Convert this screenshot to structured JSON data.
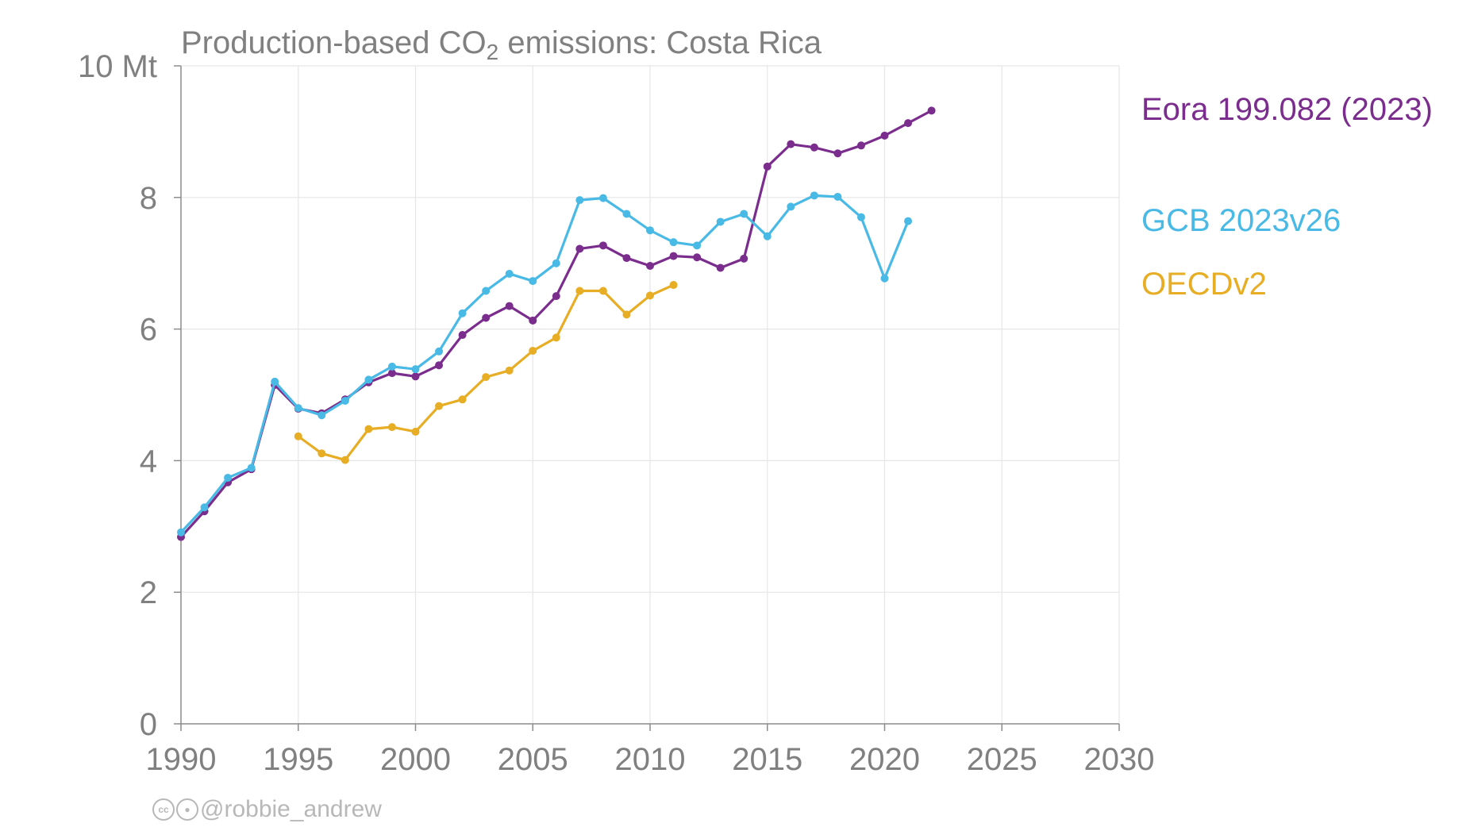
{
  "chart_data": {
    "type": "line",
    "title": {
      "prefix": "Production-based CO",
      "subscript": "2",
      "suffix": " emissions: Costa Rica"
    },
    "xlim": [
      1990,
      2030
    ],
    "ylim": [
      0,
      10
    ],
    "x_ticks": [
      1990,
      1995,
      2000,
      2005,
      2010,
      2015,
      2020,
      2025,
      2030
    ],
    "y_ticks": [
      {
        "value": 0,
        "label": "0"
      },
      {
        "value": 2,
        "label": "2"
      },
      {
        "value": 4,
        "label": "4"
      },
      {
        "value": 6,
        "label": "6"
      },
      {
        "value": 8,
        "label": "8"
      },
      {
        "value": 10,
        "label": "10 Mt"
      }
    ],
    "grid": true,
    "legend_position": "right",
    "series": [
      {
        "name": "Eora 199.082 (2023)",
        "color": "#7b2d8e",
        "x": [
          1990,
          1991,
          1992,
          1993,
          1994,
          1995,
          1996,
          1997,
          1998,
          1999,
          2000,
          2001,
          2002,
          2003,
          2004,
          2005,
          2006,
          2007,
          2008,
          2009,
          2010,
          2011,
          2012,
          2013,
          2014,
          2015,
          2016,
          2017,
          2018,
          2019,
          2020,
          2021,
          2022
        ],
        "y": [
          2.84,
          3.23,
          3.67,
          3.87,
          5.15,
          4.79,
          4.72,
          4.93,
          5.19,
          5.33,
          5.28,
          5.45,
          5.91,
          6.17,
          6.35,
          6.13,
          6.5,
          7.22,
          7.27,
          7.08,
          6.96,
          7.11,
          7.09,
          6.93,
          7.07,
          8.47,
          8.81,
          8.76,
          8.67,
          8.79,
          8.94,
          9.13,
          9.32
        ]
      },
      {
        "name": "GCB 2023v26",
        "color": "#49b9e6",
        "x": [
          1990,
          1991,
          1992,
          1993,
          1994,
          1995,
          1996,
          1997,
          1998,
          1999,
          2000,
          2001,
          2002,
          2003,
          2004,
          2005,
          2006,
          2007,
          2008,
          2009,
          2010,
          2011,
          2012,
          2013,
          2014,
          2015,
          2016,
          2017,
          2018,
          2019,
          2020,
          2021
        ],
        "y": [
          2.91,
          3.29,
          3.74,
          3.89,
          5.2,
          4.8,
          4.69,
          4.91,
          5.23,
          5.43,
          5.39,
          5.66,
          6.24,
          6.58,
          6.84,
          6.73,
          7.0,
          7.96,
          7.99,
          7.75,
          7.5,
          7.32,
          7.27,
          7.63,
          7.75,
          7.41,
          7.86,
          8.03,
          8.01,
          7.7,
          6.77,
          7.64
        ]
      },
      {
        "name": "OECDv2",
        "color": "#e7ad25",
        "x": [
          1995,
          1996,
          1997,
          1998,
          1999,
          2000,
          2001,
          2002,
          2003,
          2004,
          2005,
          2006,
          2007,
          2008,
          2009,
          2010,
          2011
        ],
        "y": [
          4.37,
          4.11,
          4.01,
          4.48,
          4.51,
          4.44,
          4.83,
          4.93,
          5.27,
          5.37,
          5.67,
          5.87,
          6.58,
          6.58,
          6.22,
          6.51,
          6.67
        ]
      }
    ]
  },
  "credit": {
    "icon_names": [
      "creative-commons-icon",
      "attribution-icon"
    ],
    "handle": "@robbie_andrew"
  }
}
